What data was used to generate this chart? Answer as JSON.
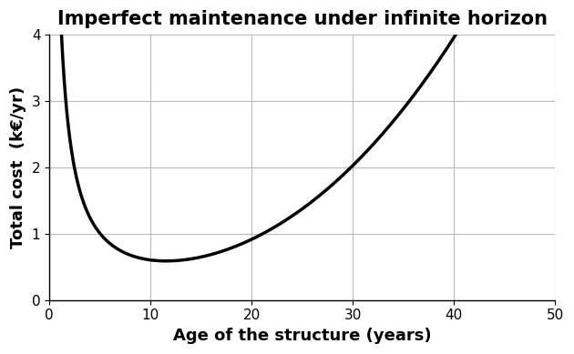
{
  "title": "Imperfect maintenance under infinite horizon",
  "xlabel": "Age of the structure (years)",
  "ylabel": "Total cost  (k€/yr)",
  "xlim": [
    0,
    50
  ],
  "ylim": [
    0,
    4
  ],
  "xticks": [
    0,
    10,
    20,
    30,
    40,
    50
  ],
  "yticks": [
    0,
    1,
    2,
    3,
    4
  ],
  "line_color": "#000000",
  "line_width": 2.5,
  "background_color": "#ffffff",
  "grid_color": "#bbbbbb",
  "title_fontsize": 15,
  "label_fontsize": 13,
  "tick_fontsize": 11,
  "curve_A": 5.5,
  "curve_B": 0.00038,
  "curve_alpha": 1.05,
  "curve_beta": 2.5,
  "curve_eps": 0.15
}
